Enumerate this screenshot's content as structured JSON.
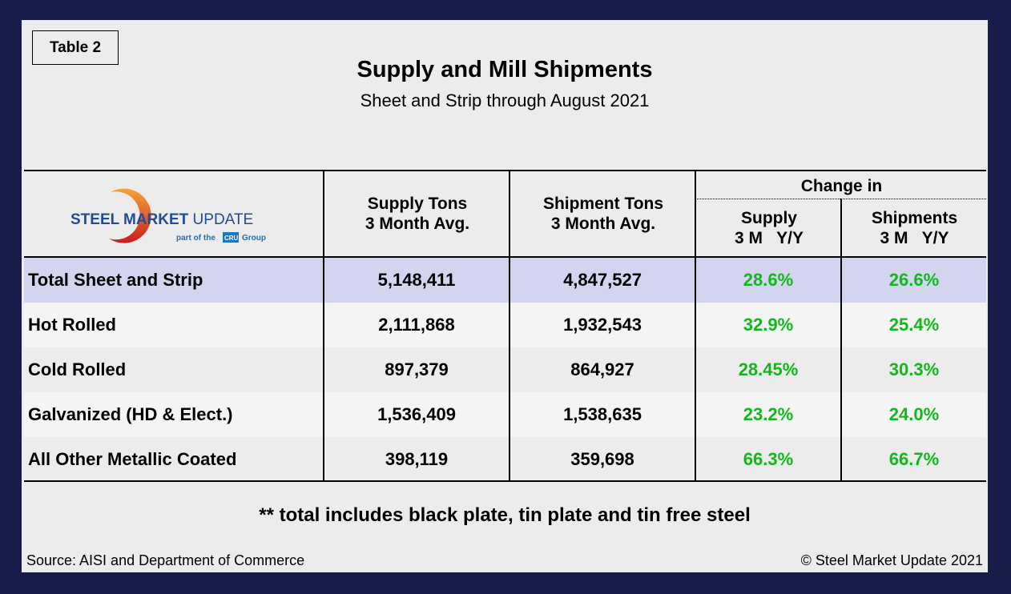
{
  "tag": "Table 2",
  "title": "Supply and Mill Shipments",
  "subtitle": "Sheet and Strip through August 2021",
  "logo": {
    "text_main": "STEEL MARKET UPDATE",
    "text_sub": "part of the CRU Group"
  },
  "headers": {
    "supply_tons": [
      "Supply Tons",
      "3 Month Avg."
    ],
    "shipment_tons": [
      "Shipment Tons",
      "3 Month Avg."
    ],
    "change_in": "Change in",
    "supply_change": [
      "Supply",
      "3 M   Y/Y"
    ],
    "shipments_change": [
      "Shipments",
      "3 M   Y/Y"
    ]
  },
  "rows": [
    {
      "label": "Total Sheet and Strip",
      "supply": "5,148,411",
      "shipments": "4,847,527",
      "supply_chg": "28.6%",
      "ship_chg": "26.6%"
    },
    {
      "label": "Hot Rolled",
      "supply": "2,111,868",
      "shipments": "1,932,543",
      "supply_chg": "32.9%",
      "ship_chg": "25.4%"
    },
    {
      "label": "Cold Rolled",
      "supply": "897,379",
      "shipments": "864,927",
      "supply_chg": "28.45%",
      "ship_chg": "30.3%"
    },
    {
      "label": "Galvanized (HD & Elect.)",
      "supply": "1,536,409",
      "shipments": "1,538,635",
      "supply_chg": "23.2%",
      "ship_chg": "24.0%"
    },
    {
      "label": "All Other Metallic Coated",
      "supply": "398,119",
      "shipments": "359,698",
      "supply_chg": "66.3%",
      "ship_chg": "66.7%"
    }
  ],
  "note": "** total includes black plate, tin plate and tin free steel",
  "source": "Source: AISI and Department of Commerce",
  "copyright": "© Steel Market Update 2021",
  "colors": {
    "frame": "#181c4a",
    "highlight_row": "#d3d5f0",
    "positive": "#12b81a",
    "brand_blue": "#1f4b99"
  }
}
